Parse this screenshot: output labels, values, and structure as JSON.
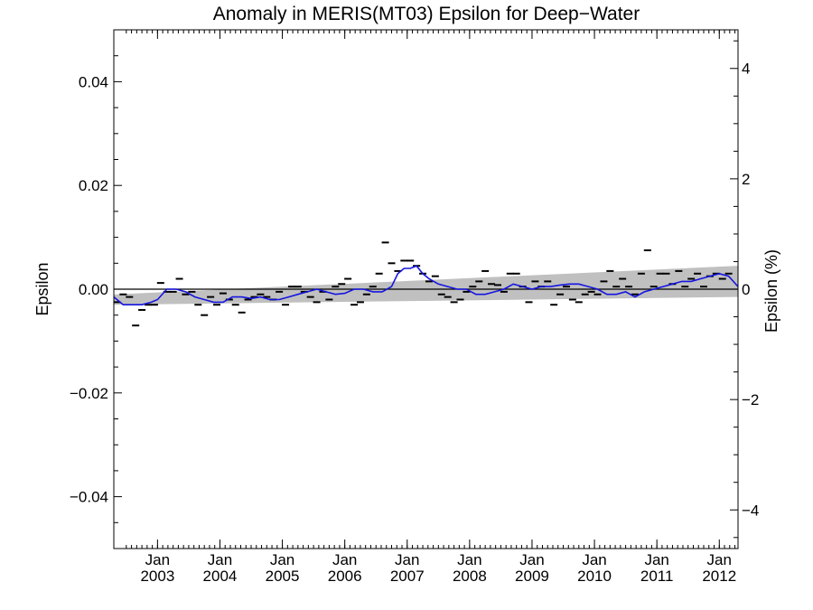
{
  "chart_data": {
    "type": "line",
    "title": "Anomaly in MERIS(MT03) Epsilon for Deep−Water",
    "ylabel": "Epsilon",
    "ylabel_right": "Epsilon (%)",
    "xlabel": "",
    "xlim": [
      2002.3,
      2012.3
    ],
    "ylim": [
      -0.05,
      0.05
    ],
    "ylim_right": [
      -4.7,
      4.7
    ],
    "x_ticks": [
      {
        "x": 2003.0,
        "label_top": "Jan",
        "label_bottom": "2003"
      },
      {
        "x": 2004.0,
        "label_top": "Jan",
        "label_bottom": "2004"
      },
      {
        "x": 2005.0,
        "label_top": "Jan",
        "label_bottom": "2005"
      },
      {
        "x": 2006.0,
        "label_top": "Jan",
        "label_bottom": "2006"
      },
      {
        "x": 2007.0,
        "label_top": "Jan",
        "label_bottom": "2007"
      },
      {
        "x": 2008.0,
        "label_top": "Jan",
        "label_bottom": "2008"
      },
      {
        "x": 2009.0,
        "label_top": "Jan",
        "label_bottom": "2009"
      },
      {
        "x": 2010.0,
        "label_top": "Jan",
        "label_bottom": "2010"
      },
      {
        "x": 2011.0,
        "label_top": "Jan",
        "label_bottom": "2011"
      },
      {
        "x": 2012.0,
        "label_top": "Jan",
        "label_bottom": "2012"
      }
    ],
    "y_ticks": [
      {
        "y": 0.04,
        "label": "0.04"
      },
      {
        "y": 0.02,
        "label": "0.02"
      },
      {
        "y": 0.0,
        "label": "0.00"
      },
      {
        "y": -0.02,
        "label": "−0.02"
      },
      {
        "y": -0.04,
        "label": "−0.04"
      }
    ],
    "y_ticks_right": [
      {
        "y": 4,
        "label": "4"
      },
      {
        "y": 2,
        "label": "2"
      },
      {
        "y": 0,
        "label": "0"
      },
      {
        "y": -2,
        "label": "−2"
      },
      {
        "y": -4,
        "label": "−4"
      }
    ],
    "zero_line": 0.0,
    "trend_band": {
      "x": [
        2002.3,
        2012.3
      ],
      "lower": [
        -0.003,
        -0.0015
      ],
      "upper": [
        -0.001,
        0.0045
      ],
      "color": "#c0c0c0"
    },
    "series": [
      {
        "kind": "points",
        "marker": "dash",
        "color": "#000000",
        "x": [
          2002.35,
          2002.45,
          2002.55,
          2002.65,
          2002.75,
          2002.85,
          2002.95,
          2003.05,
          2003.15,
          2003.25,
          2003.35,
          2003.45,
          2003.55,
          2003.65,
          2003.75,
          2003.85,
          2003.95,
          2004.05,
          2004.15,
          2004.25,
          2004.35,
          2004.45,
          2004.55,
          2004.65,
          2004.75,
          2004.85,
          2004.95,
          2005.05,
          2005.15,
          2005.25,
          2005.35,
          2005.45,
          2005.55,
          2005.65,
          2005.75,
          2005.85,
          2005.95,
          2006.05,
          2006.15,
          2006.25,
          2006.35,
          2006.45,
          2006.55,
          2006.65,
          2006.75,
          2006.85,
          2006.95,
          2007.05,
          2007.15,
          2007.25,
          2007.35,
          2007.45,
          2007.55,
          2007.65,
          2007.75,
          2007.85,
          2007.95,
          2008.05,
          2008.15,
          2008.25,
          2008.35,
          2008.45,
          2008.55,
          2008.65,
          2008.75,
          2008.85,
          2008.95,
          2009.05,
          2009.15,
          2009.25,
          2009.35,
          2009.45,
          2009.55,
          2009.65,
          2009.75,
          2009.85,
          2009.95,
          2010.05,
          2010.15,
          2010.25,
          2010.35,
          2010.45,
          2010.55,
          2010.65,
          2010.75,
          2010.85,
          2010.95,
          2011.05,
          2011.15,
          2011.25,
          2011.35,
          2011.45,
          2011.55,
          2011.65,
          2011.75,
          2011.85,
          2011.95,
          2012.05,
          2012.15
        ],
        "y": [
          -0.0025,
          -0.001,
          -0.0015,
          -0.007,
          -0.004,
          -0.003,
          -0.003,
          0.0012,
          -0.0005,
          -0.0005,
          0.002,
          -0.001,
          -0.0005,
          -0.003,
          -0.005,
          -0.0015,
          -0.003,
          -0.0008,
          -0.002,
          -0.003,
          -0.0045,
          -0.002,
          -0.0015,
          -0.001,
          -0.0015,
          -0.002,
          -0.0005,
          -0.003,
          0.0005,
          0.0005,
          -0.0005,
          -0.0015,
          -0.0025,
          -0.0005,
          -0.002,
          0.0005,
          0.001,
          0.002,
          -0.003,
          -0.0025,
          -0.001,
          0.0005,
          0.003,
          0.009,
          0.005,
          0.0035,
          0.0055,
          0.0055,
          0.0045,
          0.003,
          0.0015,
          0.0025,
          -0.001,
          -0.0015,
          -0.0025,
          -0.002,
          -0.0005,
          0.0005,
          0.0015,
          0.0035,
          0.001,
          0.0008,
          -0.0005,
          0.003,
          0.003,
          0.0005,
          -0.0025,
          0.0015,
          0.0005,
          0.0015,
          -0.003,
          -0.001,
          0.0005,
          -0.002,
          -0.0025,
          -0.001,
          -0.0005,
          -0.001,
          0.0015,
          0.0035,
          0.0005,
          0.002,
          0.0005,
          -0.001,
          0.003,
          0.0075,
          0.0005,
          0.003,
          0.003,
          0.001,
          0.0035,
          0.0005,
          0.002,
          0.003,
          0.0005,
          0.0025,
          0.003,
          0.002,
          0.003
        ]
      },
      {
        "kind": "line",
        "color": "#1515e0",
        "x": [
          2002.3,
          2002.45,
          2002.6,
          2002.75,
          2002.9,
          2003.0,
          2003.15,
          2003.3,
          2003.45,
          2003.6,
          2003.75,
          2003.9,
          2004.05,
          2004.2,
          2004.35,
          2004.5,
          2004.65,
          2004.8,
          2004.95,
          2005.1,
          2005.25,
          2005.4,
          2005.55,
          2005.7,
          2005.85,
          2006.0,
          2006.15,
          2006.3,
          2006.45,
          2006.6,
          2006.75,
          2006.85,
          2006.95,
          2007.05,
          2007.15,
          2007.25,
          2007.35,
          2007.5,
          2007.65,
          2007.8,
          2007.95,
          2008.1,
          2008.25,
          2008.4,
          2008.55,
          2008.7,
          2008.85,
          2009.0,
          2009.15,
          2009.3,
          2009.45,
          2009.6,
          2009.75,
          2009.9,
          2010.05,
          2010.2,
          2010.35,
          2010.5,
          2010.65,
          2010.8,
          2010.95,
          2011.1,
          2011.25,
          2011.4,
          2011.55,
          2011.7,
          2011.85,
          2012.0,
          2012.15,
          2012.3
        ],
        "y": [
          -0.0015,
          -0.003,
          -0.003,
          -0.003,
          -0.0025,
          -0.002,
          0.0,
          0.0,
          -0.0005,
          -0.0015,
          -0.002,
          -0.0025,
          -0.0025,
          -0.0015,
          -0.0015,
          -0.0018,
          -0.0015,
          -0.002,
          -0.002,
          -0.0015,
          -0.001,
          -0.0005,
          0.0,
          -0.0005,
          -0.001,
          -0.0008,
          0.0,
          0.0,
          -0.0005,
          -0.0005,
          0.0005,
          0.003,
          0.004,
          0.004,
          0.0045,
          0.003,
          0.002,
          0.001,
          0.0005,
          0.0,
          0.0,
          -0.001,
          -0.001,
          -0.0005,
          0.0,
          0.001,
          0.0005,
          0.0,
          0.0005,
          0.0005,
          0.0008,
          0.001,
          0.001,
          0.0005,
          0.0,
          -0.001,
          -0.001,
          -0.0005,
          -0.0015,
          -0.0005,
          0.0,
          0.0005,
          0.001,
          0.0015,
          0.0015,
          0.002,
          0.0025,
          0.003,
          0.0025,
          0.0005
        ]
      }
    ]
  }
}
